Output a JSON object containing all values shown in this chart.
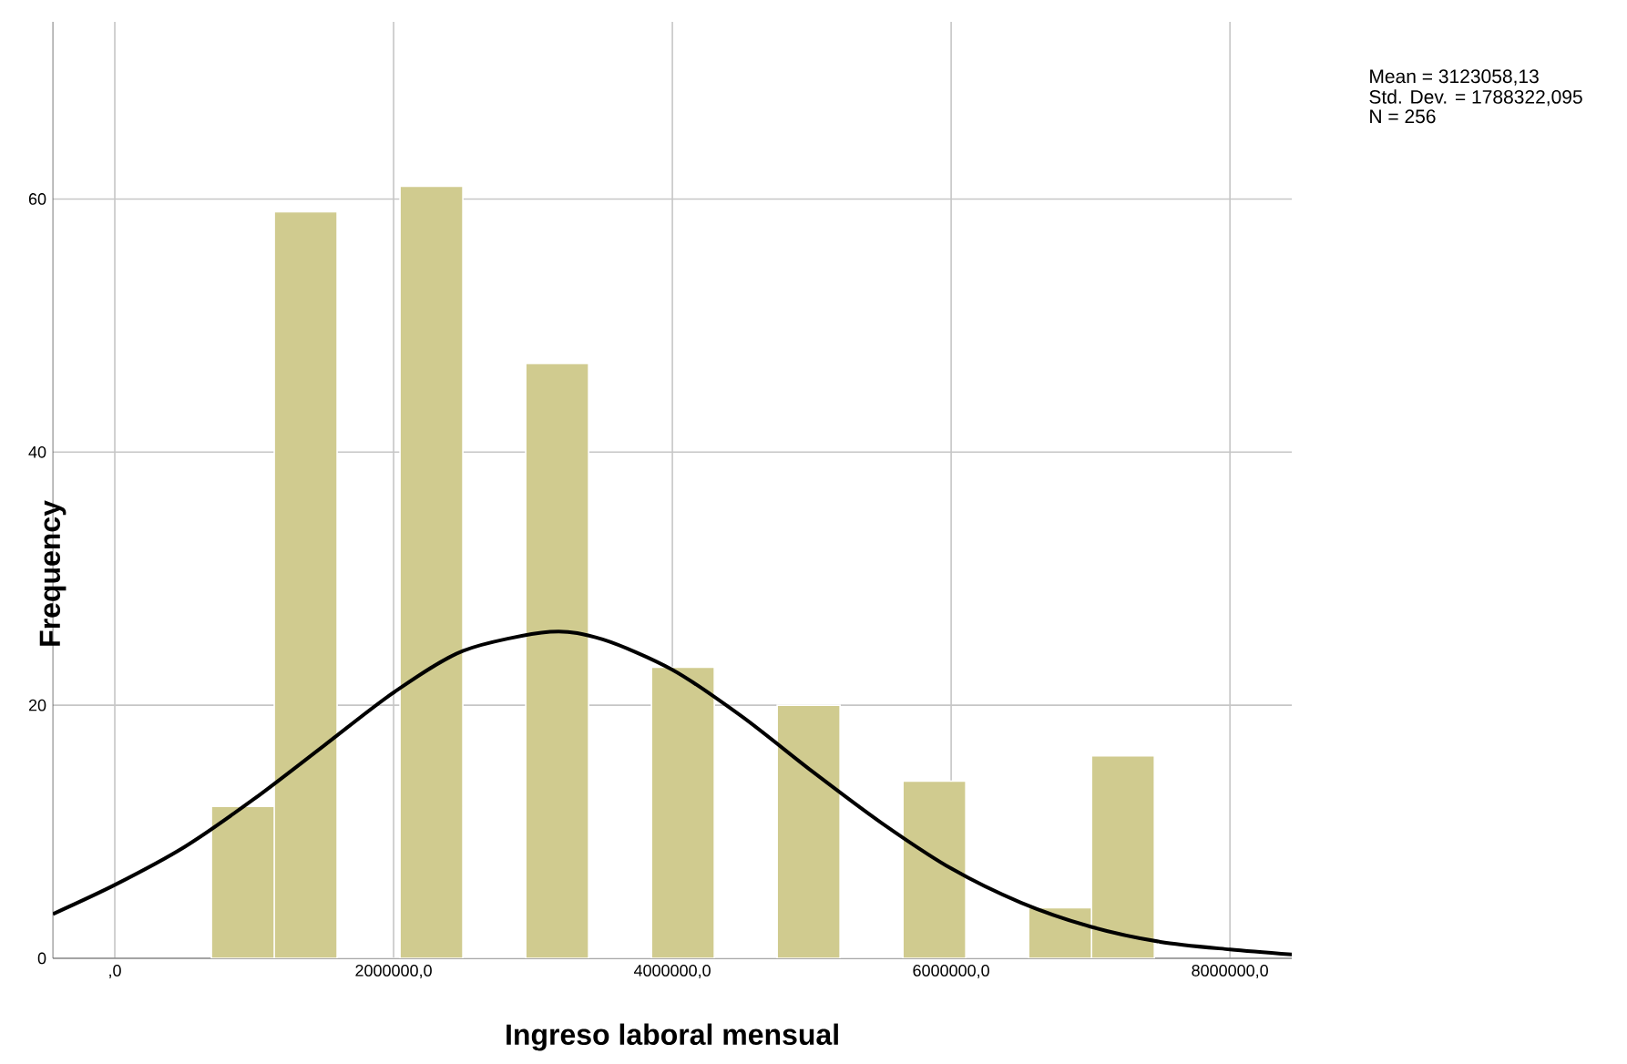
{
  "chart_data": {
    "type": "histogram",
    "xlabel": "Ingreso laboral mensual",
    "ylabel": "Frequency",
    "bins": [
      693000,
      1144000,
      1595000,
      2046000,
      2497000,
      2948000,
      3399000,
      3850000,
      4301000,
      4752000,
      5203000,
      5654000,
      6105000,
      6556000,
      7007000,
      7458000
    ],
    "values": [
      12,
      59,
      0,
      61,
      0,
      47,
      0,
      23,
      0,
      20,
      0,
      14,
      0,
      4,
      16
    ],
    "color": "#d0cb8f",
    "series": [
      {
        "type": "line",
        "color": "#000000",
        "x": [
          -444000,
          0,
          500000,
          1000000,
          1500000,
          2000000,
          2500000,
          3123000,
          3500000,
          4000000,
          4500000,
          5000000,
          5500000,
          6000000,
          6500000,
          7000000,
          7500000,
          8000000,
          8444000
        ],
        "values": [
          3.5,
          5.8,
          8.8,
          12.6,
          16.8,
          21.0,
          24.3,
          25.8,
          25.2,
          22.8,
          19.1,
          14.8,
          10.7,
          7.1,
          4.4,
          2.5,
          1.3,
          0.7,
          0.3
        ]
      }
    ],
    "xlim": [
      -444000,
      8444000
    ],
    "ylim": [
      0,
      74
    ],
    "xticks": [
      {
        "value": 0,
        "label": ",0"
      },
      {
        "value": 2000000,
        "label": "2000000,0"
      },
      {
        "value": 4000000,
        "label": "4000000,0"
      },
      {
        "value": 6000000,
        "label": "6000000,0"
      },
      {
        "value": 8000000,
        "label": "8000000,0"
      }
    ],
    "yticks": [
      0,
      20,
      40,
      60
    ],
    "grid": true,
    "annotations": [
      "Mean = 3123058,13",
      "Std. Dev. = 1788322,095",
      "N = 256"
    ]
  }
}
